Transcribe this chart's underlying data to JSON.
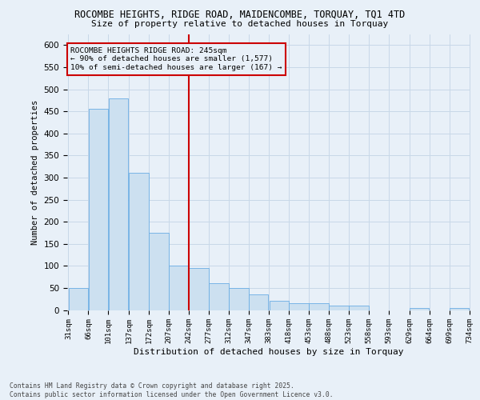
{
  "title_line1": "ROCOMBE HEIGHTS, RIDGE ROAD, MAIDENCOMBE, TORQUAY, TQ1 4TD",
  "title_line2": "Size of property relative to detached houses in Torquay",
  "xlabel": "Distribution of detached houses by size in Torquay",
  "ylabel": "Number of detached properties",
  "footer_line1": "Contains HM Land Registry data © Crown copyright and database right 2025.",
  "footer_line2": "Contains public sector information licensed under the Open Government Licence v3.0.",
  "annotation_line1": "ROCOMBE HEIGHTS RIDGE ROAD: 245sqm",
  "annotation_line2": "← 90% of detached houses are smaller (1,577)",
  "annotation_line3": "10% of semi-detached houses are larger (167) →",
  "property_line_x": 242,
  "bar_color": "#cce0f0",
  "bar_edgecolor": "#6aade4",
  "grid_color": "#c8d8e8",
  "annotation_box_edgecolor": "#cc0000",
  "property_line_color": "#cc0000",
  "background_color": "#e8f0f8",
  "bins_start": [
    31,
    66,
    101,
    137,
    172,
    207,
    242,
    277,
    312,
    347,
    383,
    418,
    453,
    488,
    523,
    558,
    593,
    629,
    664,
    699
  ],
  "bin_width": 35,
  "bin_labels": [
    "31sqm",
    "66sqm",
    "101sqm",
    "137sqm",
    "172sqm",
    "207sqm",
    "242sqm",
    "277sqm",
    "312sqm",
    "347sqm",
    "383sqm",
    "418sqm",
    "453sqm",
    "488sqm",
    "523sqm",
    "558sqm",
    "593sqm",
    "629sqm",
    "664sqm",
    "699sqm",
    "734sqm"
  ],
  "bar_heights": [
    50,
    455,
    480,
    310,
    175,
    100,
    95,
    60,
    50,
    35,
    20,
    15,
    15,
    10,
    10,
    0,
    0,
    5,
    0,
    5
  ],
  "ylim": [
    0,
    625
  ],
  "yticks": [
    0,
    50,
    100,
    150,
    200,
    250,
    300,
    350,
    400,
    450,
    500,
    550,
    600
  ],
  "figsize": [
    6.0,
    5.0
  ],
  "dpi": 100
}
